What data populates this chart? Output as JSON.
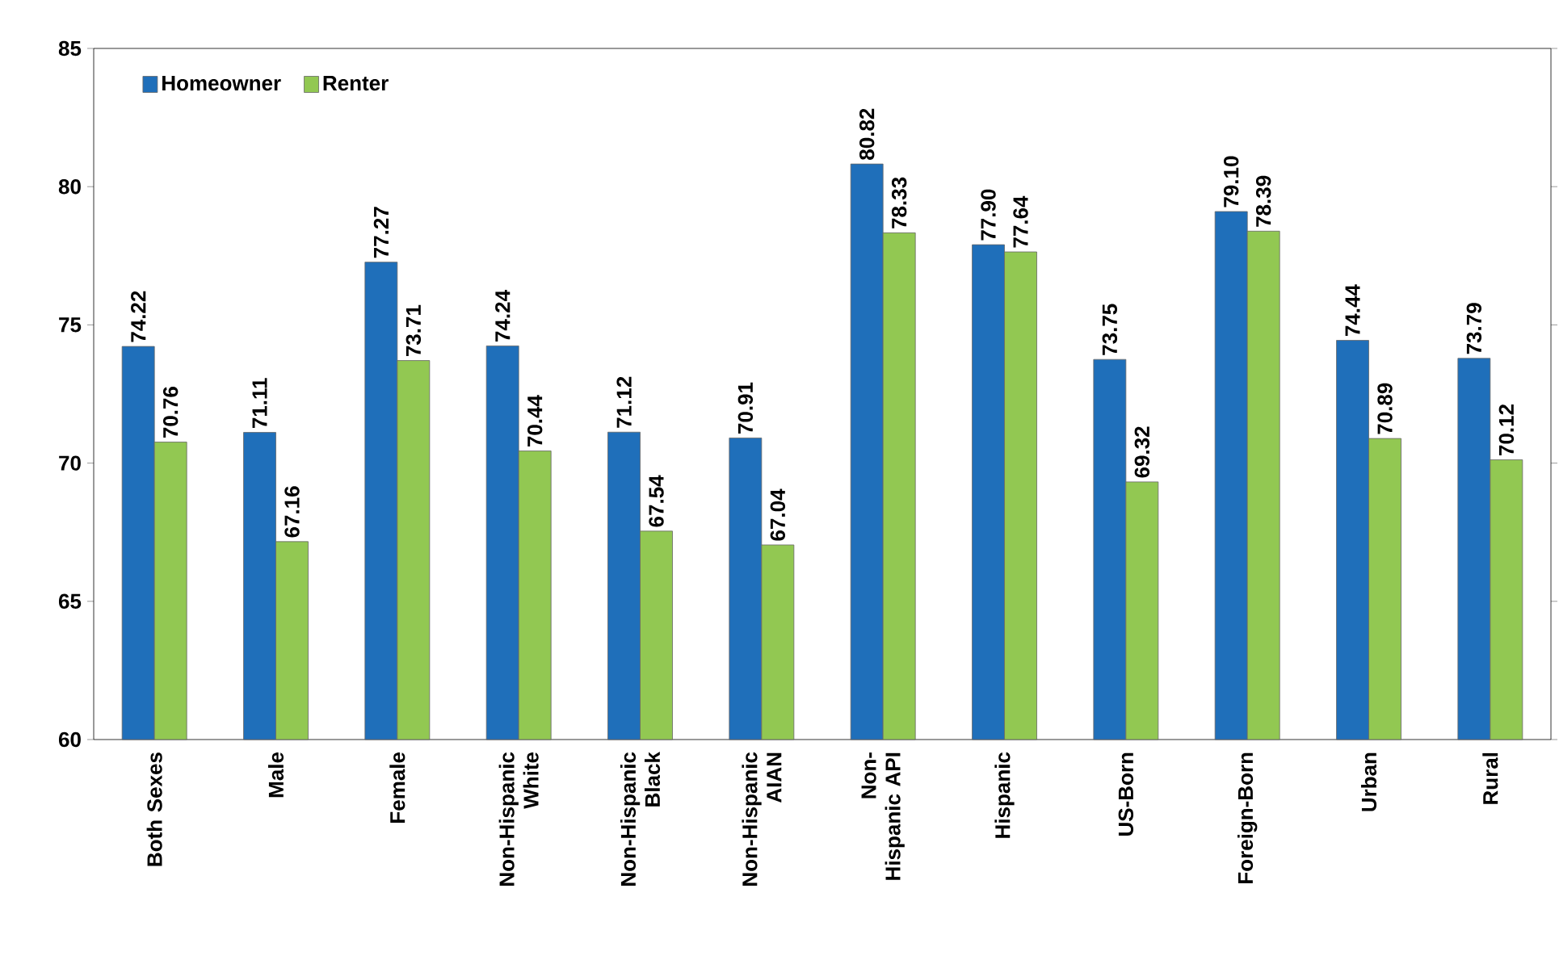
{
  "chart_data": {
    "type": "bar",
    "categories": [
      "Both Sexes",
      "Male",
      "Female",
      "Non-Hispanic White",
      "Non-Hispanic Black",
      "Non-Hispanic AIAN",
      "Non-Hispanic API",
      "Hispanic",
      "US-Born",
      "Foreign-Born",
      "Urban",
      "Rural"
    ],
    "series": [
      {
        "name": "Homeowner",
        "color": "#1f6fba",
        "values": [
          74.22,
          71.11,
          77.27,
          74.24,
          71.12,
          70.91,
          80.82,
          77.9,
          73.75,
          79.1,
          74.44,
          73.79
        ],
        "value_labels": [
          "74.22",
          "71.11",
          "77.27",
          "74.24",
          "71.12",
          "70.91",
          "80.82",
          "77.90",
          "73.75",
          "79.10",
          "74.44",
          "73.79"
        ]
      },
      {
        "name": "Renter",
        "color": "#92c852",
        "values": [
          70.76,
          67.16,
          73.71,
          70.44,
          67.54,
          67.04,
          78.33,
          77.64,
          69.32,
          78.39,
          70.89,
          70.12
        ],
        "value_labels": [
          "70.76",
          "67.16",
          "73.71",
          "70.44",
          "67.54",
          "67.04",
          "78.33",
          "77.64",
          "69.32",
          "78.39",
          "70.89",
          "70.12"
        ]
      }
    ],
    "ylim": [
      60,
      85
    ],
    "yticks": [
      60,
      65,
      70,
      75,
      80,
      85
    ],
    "grid": false,
    "legend": "top left"
  }
}
